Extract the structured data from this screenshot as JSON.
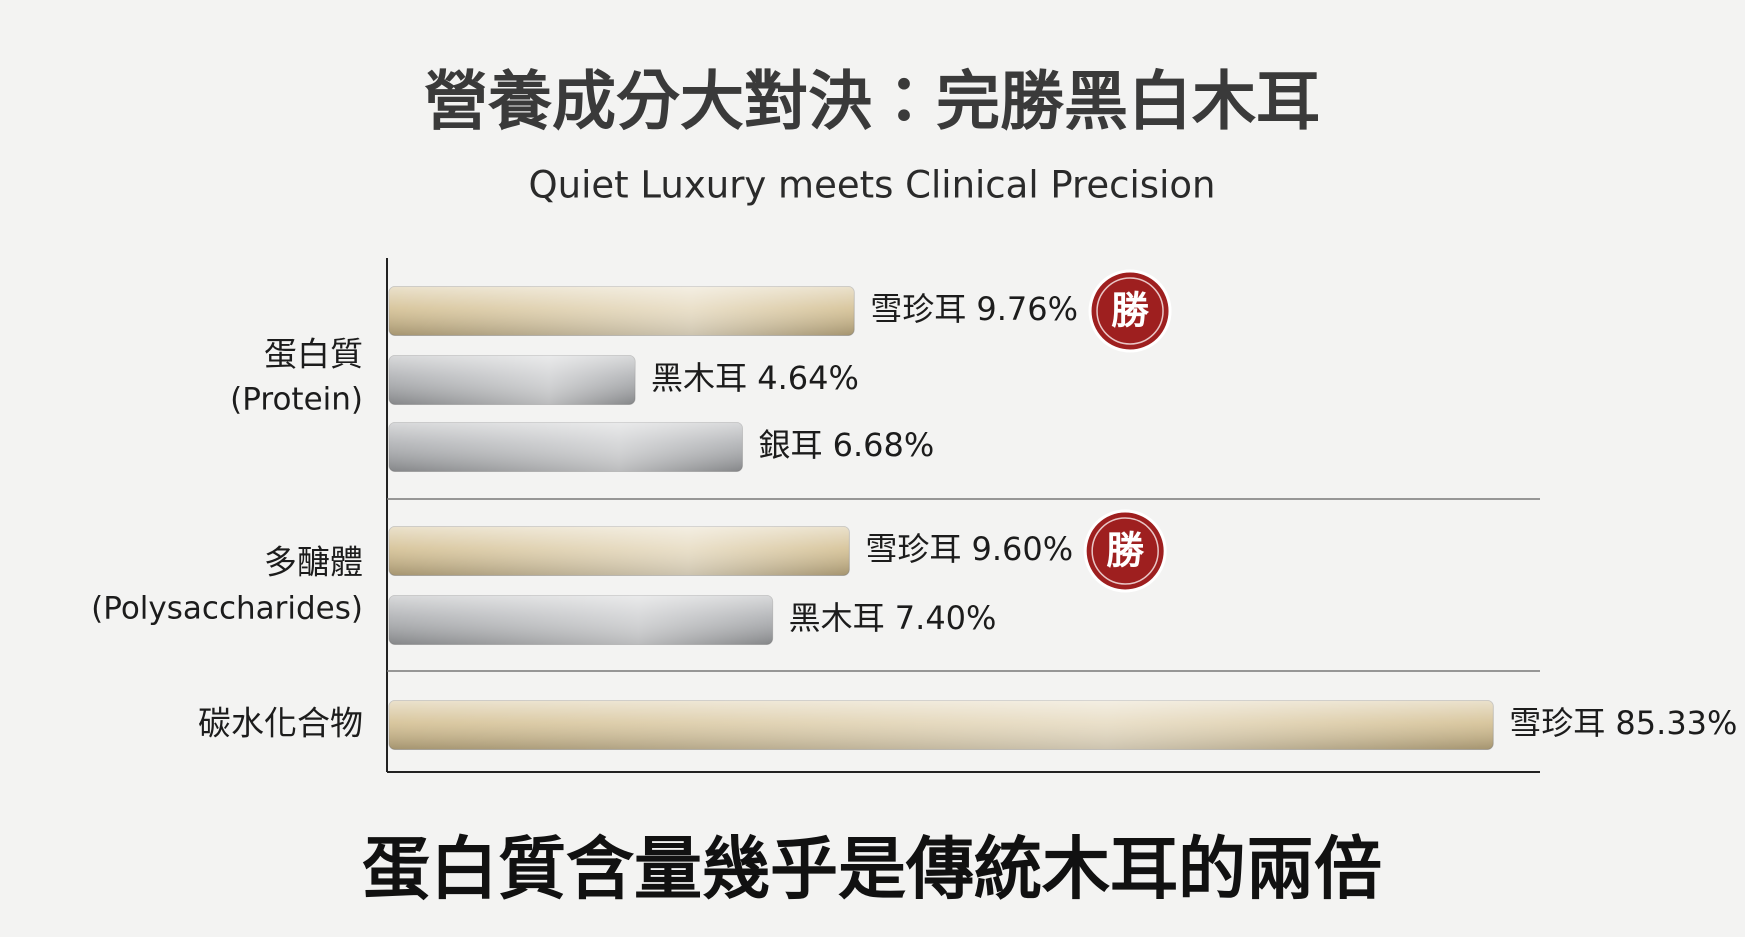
{
  "chart_data": {
    "type": "bar",
    "orientation": "horizontal",
    "title": "營養成分大對決：完勝黑白木耳",
    "subtitle": "Quiet Luxury meets Clinical Precision",
    "caption": "蛋白質含量幾乎是傳統木耳的兩倍",
    "xscale": "log",
    "xlim": [
      2,
      100
    ],
    "badge": "勝",
    "badge_color": "#9e1f1f",
    "groups": [
      {
        "label": "蛋白質",
        "sublabel": "(Protein)",
        "bars": [
          {
            "name": "雪珍耳",
            "value": 9.76,
            "value_label": "9.76%",
            "color": "#d2bd8e",
            "winner": true
          },
          {
            "name": "黑木耳",
            "value": 4.64,
            "value_label": "4.64%",
            "color": "#a9abae",
            "winner": false
          },
          {
            "name": "銀耳",
            "value": 6.68,
            "value_label": "6.68%",
            "color": "#a9abae",
            "winner": false
          }
        ]
      },
      {
        "label": "多醣體",
        "sublabel": "(Polysaccharides)",
        "bars": [
          {
            "name": "雪珍耳",
            "value": 9.6,
            "value_label": "9.60%",
            "color": "#d2bd8e",
            "winner": true
          },
          {
            "name": "黑木耳",
            "value": 7.4,
            "value_label": "7.40%",
            "color": "#a9abae",
            "winner": false
          }
        ]
      },
      {
        "label": "碳水化合物",
        "bars": [
          {
            "name": "雪珍耳",
            "value": 85.33,
            "value_label": "85.33%",
            "color": "#d2bd8e",
            "winner": true
          }
        ]
      }
    ]
  }
}
